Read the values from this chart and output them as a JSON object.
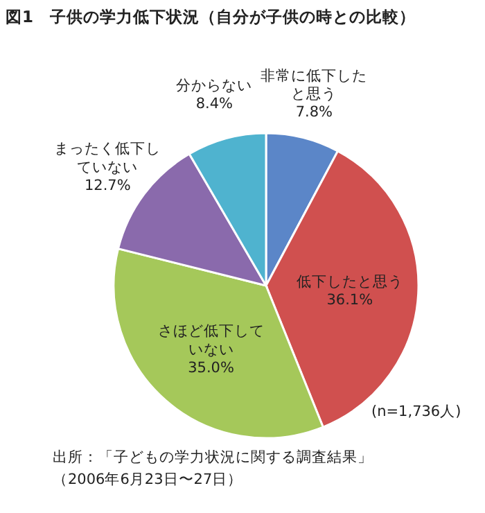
{
  "chart_data": {
    "type": "pie",
    "title": "図1　子供の学力低下状況（自分が子供の時との比較）",
    "categories": [
      "非常に低下したと思う",
      "低下したと思う",
      "さほど低下していない",
      "まったく低下していない",
      "分からない"
    ],
    "values": [
      7.8,
      36.1,
      35.0,
      12.7,
      8.4
    ],
    "colors": [
      "#5b86c8",
      "#d0504f",
      "#a5c85a",
      "#8a6aac",
      "#4fb3cf"
    ],
    "value_labels": [
      "7.8%",
      "36.1%",
      "35.0%",
      "12.7%",
      "8.4%"
    ],
    "annotations": [
      "(n=1,736人)",
      "出所：「子どもの学力状況に関する調査結果」",
      "（2006年6月23日〜27日）"
    ]
  }
}
